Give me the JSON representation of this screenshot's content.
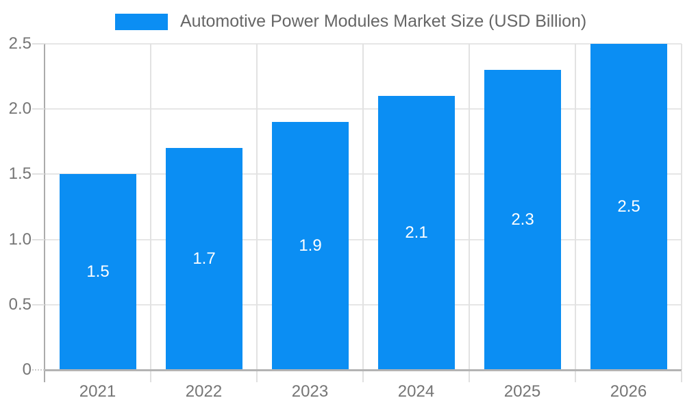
{
  "legend": {
    "label": "Automotive Power Modules Market Size (USD Billion)"
  },
  "chart_data": {
    "type": "bar",
    "title": "Automotive Power Modules Market Size (USD Billion)",
    "categories": [
      "2021",
      "2022",
      "2023",
      "2024",
      "2025",
      "2026"
    ],
    "values": [
      1.5,
      1.7,
      1.9,
      2.1,
      2.3,
      2.5
    ],
    "bar_labels": [
      "1.5",
      "1.7",
      "1.9",
      "2.1",
      "2.3",
      "2.5"
    ],
    "xlabel": "",
    "ylabel": "",
    "ylim": [
      0,
      2.5
    ],
    "yticks": [
      0,
      0.5,
      1.0,
      1.5,
      2.0,
      2.5
    ],
    "ytick_labels": [
      "0",
      "0.5",
      "1.0",
      "1.5",
      "2.0",
      "2.5"
    ],
    "grid": true,
    "legend_position": "top"
  },
  "colors": {
    "bar": "#0b8ef3",
    "gridline": "#e6e6e6",
    "axis": "#b0b0b0",
    "tick_text": "#757575",
    "legend_text": "#666666",
    "bar_label_text": "#ffffff",
    "background": "#ffffff"
  }
}
